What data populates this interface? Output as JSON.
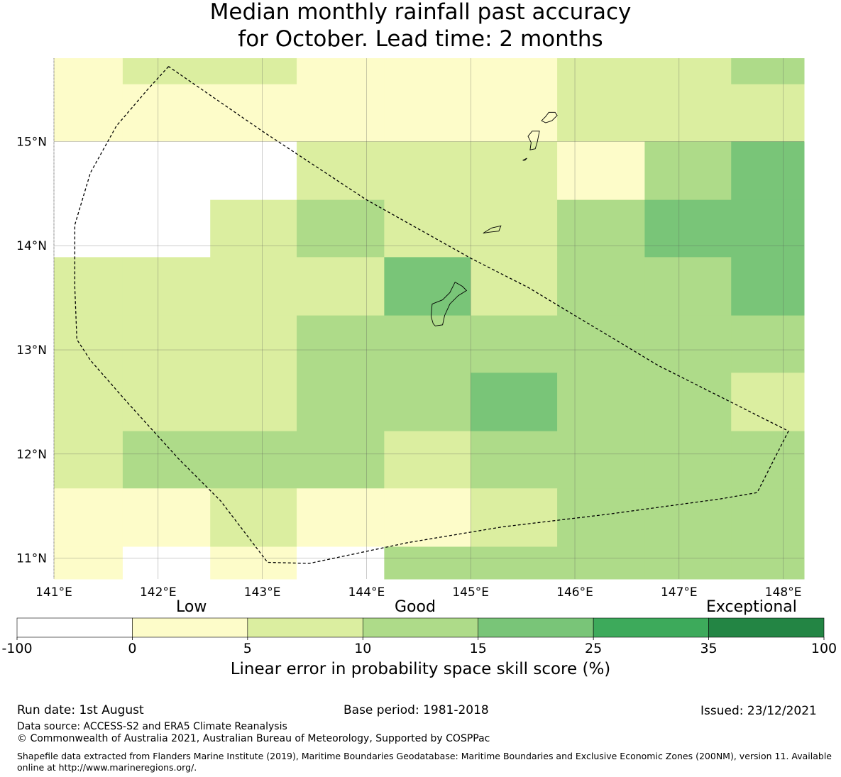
{
  "title_line1": "Median monthly rainfall past accuracy",
  "title_line2": "for October. Lead time: 2 months",
  "map": {
    "lon_range": [
      141.0,
      148.2
    ],
    "lat_range": [
      10.8,
      15.8
    ],
    "lon_ticks": [
      141,
      142,
      143,
      144,
      145,
      146,
      147,
      148
    ],
    "lat_ticks": [
      11,
      12,
      13,
      14,
      15
    ],
    "lon_tick_labels": [
      "141°E",
      "142°E",
      "143°E",
      "144°E",
      "145°E",
      "146°E",
      "147°E",
      "148°E"
    ],
    "lat_tick_labels": [
      "11°N",
      "12°N",
      "13°N",
      "14°N",
      "15°N"
    ],
    "grid_lon_edges": [
      141.0,
      141.66,
      142.5,
      143.33,
      144.17,
      145.0,
      145.83,
      146.67,
      147.5,
      148.2
    ],
    "grid_lat_edges": [
      15.8,
      15.55,
      15.0,
      14.44,
      13.89,
      13.33,
      12.78,
      12.22,
      11.67,
      11.11,
      10.8
    ],
    "grid_categories": [
      [
        1,
        2,
        2,
        1,
        1,
        1,
        2,
        2,
        3
      ],
      [
        1,
        1,
        1,
        1,
        1,
        1,
        2,
        2,
        2
      ],
      [
        0,
        0,
        0,
        2,
        2,
        2,
        1,
        3,
        4
      ],
      [
        0,
        0,
        2,
        3,
        2,
        2,
        3,
        4,
        4
      ],
      [
        2,
        2,
        2,
        2,
        4,
        2,
        3,
        3,
        4
      ],
      [
        2,
        2,
        2,
        3,
        3,
        3,
        3,
        3,
        3
      ],
      [
        2,
        2,
        2,
        3,
        3,
        4,
        3,
        3,
        2
      ],
      [
        2,
        3,
        3,
        3,
        2,
        3,
        3,
        3,
        3
      ],
      [
        1,
        1,
        2,
        1,
        1,
        2,
        3,
        3,
        3
      ],
      [
        1,
        0,
        1,
        0,
        3,
        3,
        3,
        3,
        3
      ]
    ],
    "eez_boundary": [
      [
        142.1,
        15.72
      ],
      [
        141.9,
        15.5
      ],
      [
        141.6,
        15.15
      ],
      [
        141.35,
        14.7
      ],
      [
        141.2,
        14.2
      ],
      [
        141.2,
        13.6
      ],
      [
        141.22,
        13.1
      ],
      [
        141.35,
        12.9
      ],
      [
        141.7,
        12.5
      ],
      [
        142.2,
        11.95
      ],
      [
        142.6,
        11.55
      ],
      [
        143.05,
        10.96
      ],
      [
        143.45,
        10.95
      ],
      [
        144.4,
        11.15
      ],
      [
        145.3,
        11.3
      ],
      [
        146.3,
        11.42
      ],
      [
        147.4,
        11.57
      ],
      [
        147.75,
        11.63
      ],
      [
        148.05,
        12.22
      ],
      [
        146.8,
        12.85
      ],
      [
        145.55,
        13.6
      ],
      [
        145.0,
        13.88
      ],
      [
        144.0,
        14.44
      ],
      [
        143.0,
        15.1
      ],
      [
        142.1,
        15.72
      ]
    ],
    "islands": [
      [
        [
          144.64,
          13.25
        ],
        [
          144.62,
          13.32
        ],
        [
          144.63,
          13.44
        ],
        [
          144.73,
          13.48
        ],
        [
          144.8,
          13.55
        ],
        [
          144.85,
          13.65
        ],
        [
          144.92,
          13.61
        ],
        [
          144.96,
          13.57
        ],
        [
          144.88,
          13.52
        ],
        [
          144.8,
          13.44
        ],
        [
          144.75,
          13.33
        ],
        [
          144.73,
          13.24
        ],
        [
          144.66,
          13.23
        ]
      ],
      [
        [
          145.12,
          14.12
        ],
        [
          145.2,
          14.17
        ],
        [
          145.29,
          14.19
        ],
        [
          145.27,
          14.14
        ],
        [
          145.18,
          14.13
        ],
        [
          145.12,
          14.12
        ]
      ],
      [
        [
          145.57,
          14.92
        ],
        [
          145.58,
          14.99
        ],
        [
          145.55,
          15.05
        ],
        [
          145.59,
          15.1
        ],
        [
          145.66,
          15.1
        ],
        [
          145.64,
          15.0
        ],
        [
          145.62,
          14.93
        ],
        [
          145.57,
          14.92
        ]
      ],
      [
        [
          145.68,
          15.2
        ],
        [
          145.72,
          15.24
        ],
        [
          145.75,
          15.28
        ],
        [
          145.81,
          15.28
        ],
        [
          145.83,
          15.25
        ],
        [
          145.78,
          15.2
        ],
        [
          145.72,
          15.18
        ],
        [
          145.68,
          15.2
        ]
      ],
      [
        [
          145.5,
          14.82
        ],
        [
          145.54,
          14.84
        ],
        [
          145.52,
          14.82
        ],
        [
          145.5,
          14.82
        ]
      ]
    ]
  },
  "colorbar": {
    "ticks": [
      "-100",
      "0",
      "5",
      "10",
      "15",
      "25",
      "35",
      "100"
    ],
    "colors": [
      "#ffffff",
      "#fdfcc9",
      "#dbeea0",
      "#aedb89",
      "#79c578",
      "#3daa5b",
      "#238544"
    ],
    "category_labels": [
      "Low",
      "Good",
      "Exceptional"
    ],
    "title": "Linear error in probability space skill score (%)"
  },
  "footer": {
    "run_date": "Run date: 1st August",
    "base_period": "Base period: 1981-2018",
    "issued": "Issued: 23/12/2021",
    "data_source": "Data source: ACCESS-S2 and ERA5 Climate Reanalysis",
    "copyright": "© Commonwealth of Australia 2021, Australian Bureau of Meteorology, Supported by COSPPac",
    "shapefile_note": "Shapefile data extracted from Flanders Marine Institute (2019), Maritime Boundaries Geodatabase: Maritime Boundaries and Exclusive Economic Zones (200NM), version 11. Available online at http://www.marineregions.org/."
  }
}
